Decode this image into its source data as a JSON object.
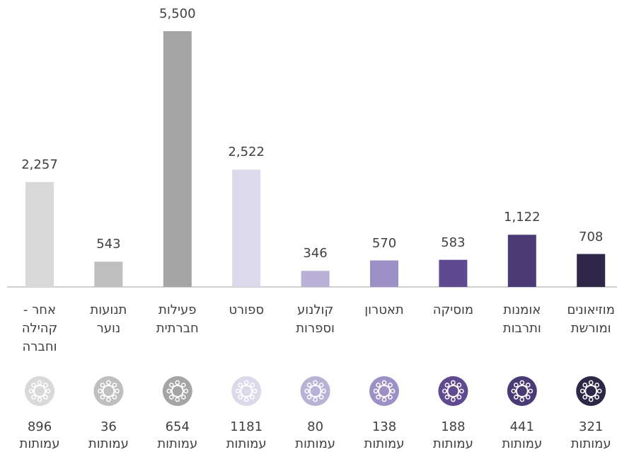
{
  "chart_data": {
    "type": "bar",
    "categories": [
      "אחר -\nקהילה\nוחברה",
      "תנועות\nנוער",
      "פעילות\nחברתית",
      "ספורט",
      "קולנוע\nוספרות",
      "תאטרון",
      "מוסיקה",
      "אומנות\nותרבות",
      "מוזיאונים\nומורשת"
    ],
    "values": [
      2257,
      543,
      5500,
      2522,
      346,
      570,
      583,
      1122,
      708
    ],
    "value_labels": [
      "2,257",
      "543",
      "5,500",
      "2,522",
      "346",
      "570",
      "583",
      "1,122",
      "708"
    ],
    "colors": [
      "#d9d9d9",
      "#bfbfbf",
      "#a5a5a5",
      "#dcd9ea",
      "#b9b1d6",
      "#9d90c5",
      "#5f4a92",
      "#4a3a76",
      "#2e2747"
    ],
    "org_counts": [
      896,
      36,
      654,
      1181,
      80,
      138,
      188,
      441,
      321
    ],
    "org_label": "עמותות"
  }
}
